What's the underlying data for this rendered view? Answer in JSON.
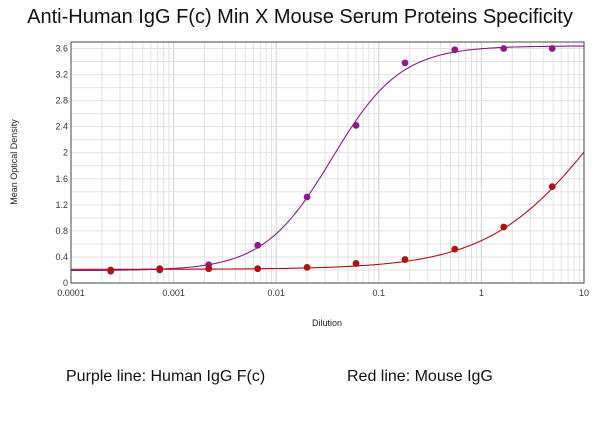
{
  "chart_data": {
    "type": "scatter",
    "title": "Anti-Human IgG F(c) Min X Mouse Serum Proteins Specificity",
    "xlabel": "Dilution",
    "ylabel": "Mean Optical Density",
    "xscale": "log",
    "xlim": [
      0.0001,
      10
    ],
    "ylim": [
      0,
      3.7
    ],
    "x_ticks": [
      "0.0001",
      "0.001",
      "0.01",
      "0.1",
      "1",
      "10"
    ],
    "y_ticks": [
      "0",
      "0.4",
      "0.8",
      "1.2",
      "1.6",
      "2",
      "2.4",
      "2.8",
      "3.2",
      "3.6"
    ],
    "grid": true,
    "x": [
      0.000244,
      0.000732,
      0.0022,
      0.0066,
      0.02,
      0.06,
      0.18,
      0.55,
      1.65,
      4.9
    ],
    "series": [
      {
        "name": "Human IgG F(c)",
        "color": "#8b1a8b",
        "values": [
          0.18,
          0.2,
          0.28,
          0.58,
          1.32,
          2.42,
          3.38,
          3.58,
          3.6,
          3.6
        ],
        "fit": {
          "bottom": 0.19,
          "top": 3.64,
          "ec50": 0.035,
          "hill": 1.3
        }
      },
      {
        "name": "Mouse IgG",
        "color": "#b01010",
        "values": [
          0.2,
          0.22,
          0.22,
          0.22,
          0.24,
          0.3,
          0.36,
          0.52,
          0.86,
          1.48
        ],
        "fit": {
          "bottom": 0.21,
          "top": 4.5,
          "ec50": 15,
          "hill": 0.8
        }
      }
    ]
  },
  "legend": {
    "purple": "Purple line: Human IgG F(c)",
    "red": "Red line: Mouse IgG"
  }
}
